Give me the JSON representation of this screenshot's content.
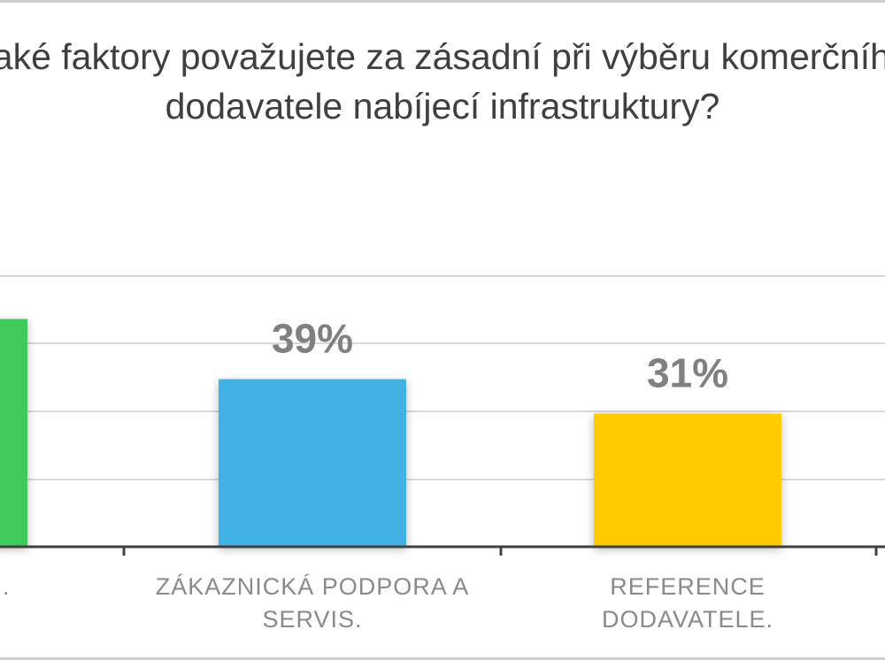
{
  "chart_data": {
    "type": "bar",
    "title_lines": [
      "Jaké faktory považujete za zásadní při výběru komerčního",
      "dodavatele nabíjecí infrastruktury?"
    ],
    "categories": [
      ".",
      "ZÁKAZNICKÁ PODPORA A SERVIS.",
      "REFERENCE DODAVATELE."
    ],
    "category_lines": [
      [
        "."
      ],
      [
        "ZÁKAZNICKÁ PODPORA A",
        "SERVIS."
      ],
      [
        "REFERENCE",
        "DODAVATELE."
      ]
    ],
    "values": [
      53,
      39,
      31
    ],
    "value_labels": [
      "",
      "39%",
      "31%"
    ],
    "colors": [
      "#3ecb5c",
      "#42b2e5",
      "#ffcc00"
    ],
    "ylim": [
      0,
      63
    ],
    "grid": true,
    "xlabel": "",
    "ylabel": ""
  }
}
